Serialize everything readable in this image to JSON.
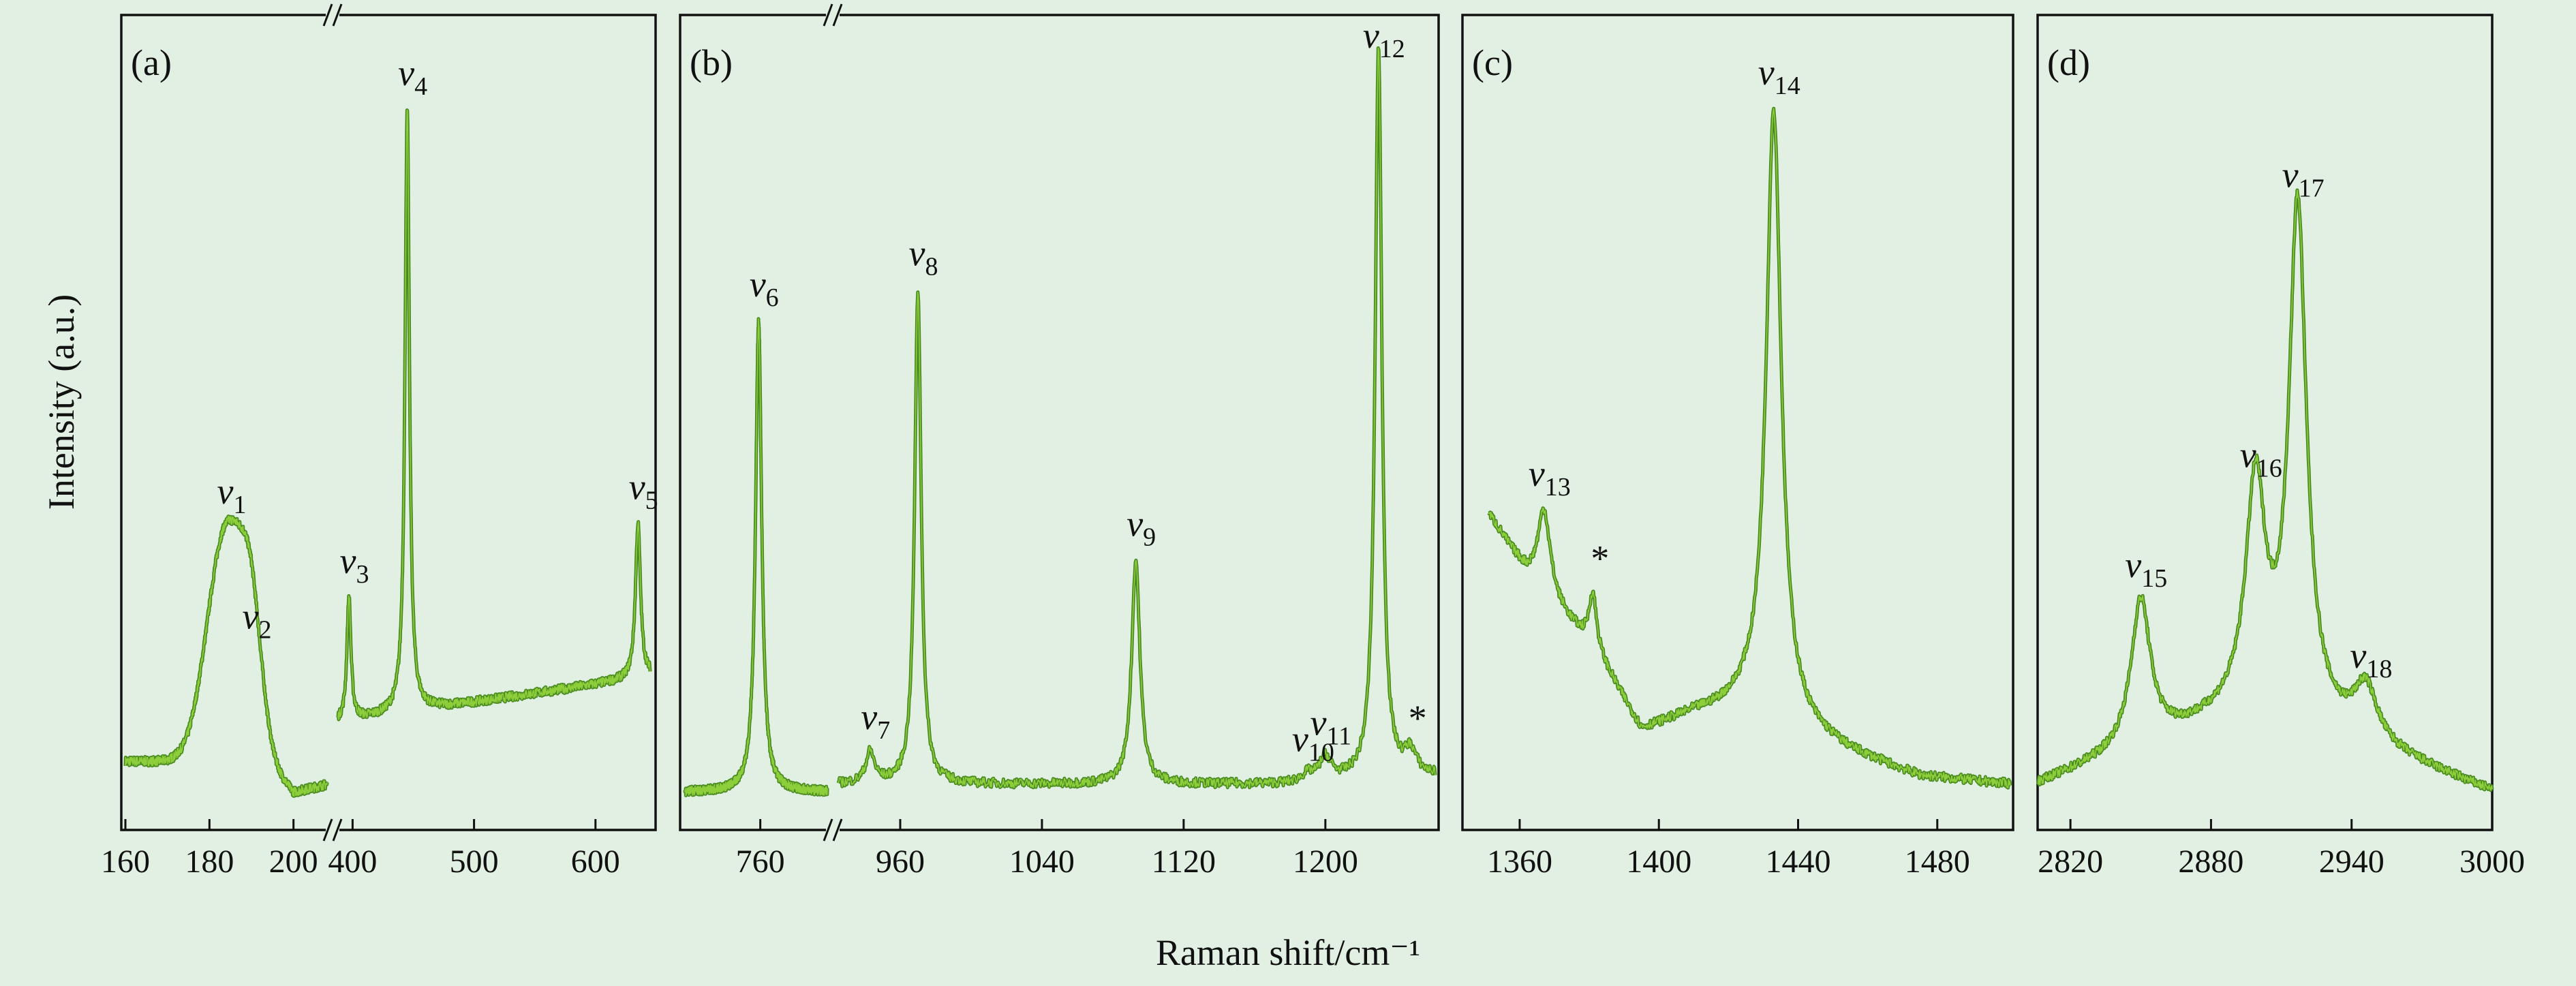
{
  "chart_data": {
    "type": "line",
    "ylabel": "Intensity (a.u.)",
    "xlabel": "Raman shift/cm⁻¹",
    "grid": false,
    "colors": {
      "trace": "#4a8a22",
      "background": "#e1f0e2",
      "axes": "#111111"
    },
    "panels": [
      {
        "id": "a",
        "label": "(a)",
        "broken_axis": true,
        "segments": [
          {
            "xlim": [
              160,
              208
            ],
            "ticks": [
              160,
              180,
              200
            ]
          },
          {
            "xlim": [
              388,
              645
            ],
            "ticks": [
              400,
              500,
              600
            ]
          }
        ],
        "ylim": [
          0,
          1
        ],
        "baseline": [
          [
            160,
            0.05
          ],
          [
            175,
            0.05
          ],
          [
            190,
            0.07
          ],
          [
            200,
            0.01
          ],
          [
            208,
            0.02
          ],
          [
            388,
            0.1
          ],
          [
            645,
            0.16
          ]
        ],
        "peaks": [
          {
            "label": "v",
            "sub": "1",
            "x": 184,
            "y": 0.29,
            "w": 4.5,
            "shape": "g"
          },
          {
            "label": "v",
            "sub": "2",
            "x": 190,
            "y": 0.12,
            "w": 2.5,
            "shape": "g"
          },
          {
            "label": "v",
            "sub": "3",
            "x": 397,
            "y": 0.16,
            "w": 2,
            "shape": "l"
          },
          {
            "label": "v",
            "sub": "4",
            "x": 445,
            "y": 0.78,
            "w": 2.2,
            "shape": "l"
          },
          {
            "label": "v",
            "sub": "5",
            "x": 635,
            "y": 0.2,
            "w": 2.5,
            "shape": "l"
          }
        ]
      },
      {
        "id": "b",
        "label": "(b)",
        "broken_axis": true,
        "segments": [
          {
            "xlim": [
              715,
              800
            ],
            "ticks": [
              760
            ]
          },
          {
            "xlim": [
              925,
              1262
            ],
            "ticks": [
              960,
              1040,
              1120,
              1200
            ]
          }
        ],
        "ylim": [
          0,
          1
        ],
        "baseline": [
          [
            715,
            0.01
          ],
          [
            800,
            0.01
          ],
          [
            925,
            0.02
          ],
          [
            1180,
            0.02
          ],
          [
            1262,
            0.03
          ]
        ],
        "peaks": [
          {
            "label": "v",
            "sub": "6",
            "x": 759,
            "y": 0.61,
            "w": 2.2,
            "shape": "l"
          },
          {
            "label": "v",
            "sub": "7",
            "x": 943,
            "y": 0.04,
            "w": 3,
            "shape": "l"
          },
          {
            "label": "v",
            "sub": "8",
            "x": 970,
            "y": 0.64,
            "w": 2.2,
            "shape": "l"
          },
          {
            "label": "v",
            "sub": "9",
            "x": 1093,
            "y": 0.29,
            "w": 2.8,
            "shape": "l"
          },
          {
            "label": "v",
            "sub": "10",
            "x": 1190,
            "y": 0.01,
            "w": 4,
            "shape": "l"
          },
          {
            "label": "v",
            "sub": "11",
            "x": 1200,
            "y": 0.03,
            "w": 4,
            "shape": "l"
          },
          {
            "label": "v",
            "sub": "12",
            "x": 1230,
            "y": 0.95,
            "w": 2.3,
            "shape": "l"
          },
          {
            "label": "*",
            "sub": "",
            "x": 1248,
            "y": 0.03,
            "w": 4,
            "shape": "l"
          }
        ]
      },
      {
        "id": "c",
        "label": "(c)",
        "broken_axis": false,
        "segments": [
          {
            "xlim": [
              1351,
              1501
            ],
            "ticks": [
              1360,
              1400,
              1440,
              1480
            ]
          }
        ],
        "ylim": [
          0,
          1
        ],
        "baseline": [
          [
            1351,
            0.37
          ],
          [
            1362,
            0.29
          ],
          [
            1372,
            0.24
          ],
          [
            1382,
            0.19
          ],
          [
            1395,
            0.09
          ],
          [
            1410,
            0.11
          ],
          [
            1425,
            0.12
          ],
          [
            1455,
            0.06
          ],
          [
            1475,
            0.03
          ],
          [
            1501,
            0.02
          ]
        ],
        "peaks": [
          {
            "label": "v",
            "sub": "13",
            "x": 1367,
            "y": 0.11,
            "w": 2.2,
            "shape": "l"
          },
          {
            "label": "*",
            "sub": "",
            "x": 1381,
            "y": 0.07,
            "w": 1.3,
            "shape": "l"
          },
          {
            "label": "v",
            "sub": "14",
            "x": 1433,
            "y": 0.79,
            "w": 2.6,
            "shape": "l"
          }
        ]
      },
      {
        "id": "d",
        "label": "(d)",
        "broken_axis": false,
        "segments": [
          {
            "xlim": [
              2806,
              3000
            ],
            "ticks": [
              2820,
              2880,
              2940,
              3000
            ]
          }
        ],
        "ylim": [
          0,
          1
        ],
        "baseline": [
          [
            2806,
            0.02
          ],
          [
            2900,
            0.12
          ],
          [
            3000,
            0.01
          ]
        ],
        "peaks": [
          {
            "label": "v",
            "sub": "15",
            "x": 2850,
            "y": 0.19,
            "w": 5,
            "shape": "l"
          },
          {
            "label": "v",
            "sub": "16",
            "x": 2899,
            "y": 0.28,
            "w": 5,
            "shape": "l"
          },
          {
            "label": "v",
            "sub": "17",
            "x": 2917,
            "y": 0.66,
            "w": 4.5,
            "shape": "l"
          },
          {
            "label": "v",
            "sub": "18",
            "x": 2946,
            "y": 0.07,
            "w": 6,
            "shape": "l"
          }
        ]
      }
    ]
  }
}
